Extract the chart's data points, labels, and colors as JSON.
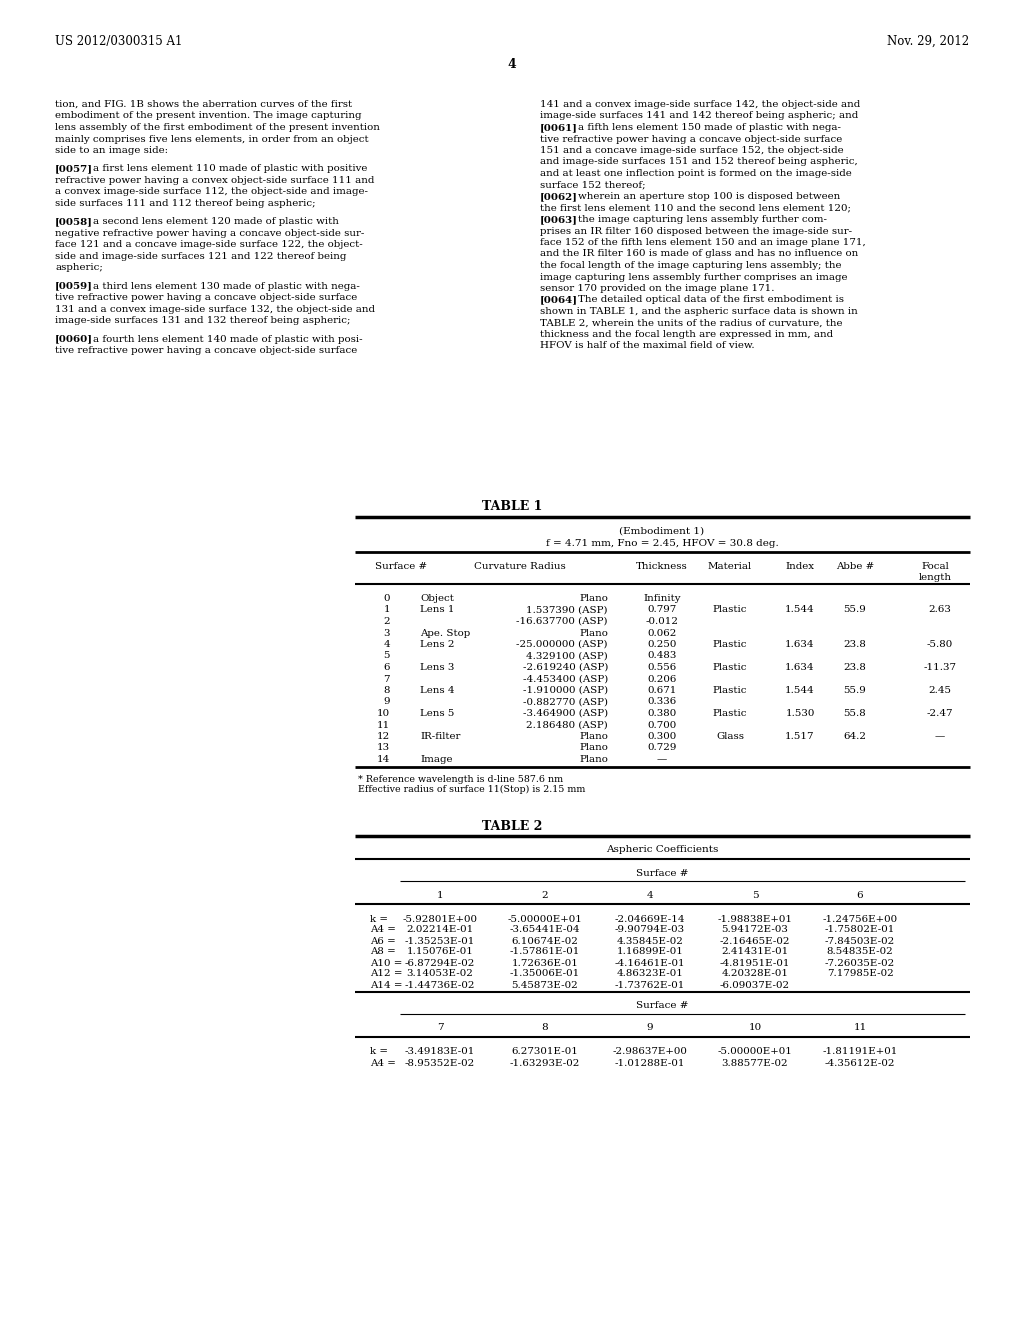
{
  "header_left": "US 2012/0300315 A1",
  "header_right": "Nov. 29, 2012",
  "page_number": "4",
  "background_color": "#ffffff",
  "text_color": "#000000",
  "left_column_text": [
    "tion, and FIG. 1B shows the aberration curves of the first",
    "embodiment of the present invention. The image capturing",
    "lens assembly of the first embodiment of the present invention",
    "mainly comprises five lens elements, in order from an object",
    "side to an image side:",
    "",
    "[0057]    a first lens element 110 made of plastic with positive",
    "refractive power having a convex object-side surface 111 and",
    "a convex image-side surface 112, the object-side and image-",
    "side surfaces 111 and 112 thereof being aspheric;",
    "",
    "[0058]    a second lens element 120 made of plastic with",
    "negative refractive power having a concave object-side sur-",
    "face 121 and a concave image-side surface 122, the object-",
    "side and image-side surfaces 121 and 122 thereof being",
    "aspheric;",
    "",
    "[0059]    a third lens element 130 made of plastic with nega-",
    "tive refractive power having a concave object-side surface",
    "131 and a convex image-side surface 132, the object-side and",
    "image-side surfaces 131 and 132 thereof being aspheric;",
    "",
    "[0060]    a fourth lens element 140 made of plastic with posi-",
    "tive refractive power having a concave object-side surface"
  ],
  "right_column_text": [
    "141 and a convex image-side surface 142, the object-side and",
    "image-side surfaces 141 and 142 thereof being aspheric; and",
    "[0061]    a fifth lens element 150 made of plastic with nega-",
    "tive refractive power having a concave object-side surface",
    "151 and a concave image-side surface 152, the object-side",
    "and image-side surfaces 151 and 152 thereof being aspheric,",
    "and at least one inflection point is formed on the image-side",
    "surface 152 thereof;",
    "[0062]    wherein an aperture stop 100 is disposed between",
    "the first lens element 110 and the second lens element 120;",
    "[0063]    the image capturing lens assembly further com-",
    "prises an IR filter 160 disposed between the image-side sur-",
    "face 152 of the fifth lens element 150 and an image plane 171,",
    "and the IR filter 160 is made of glass and has no influence on",
    "the focal length of the image capturing lens assembly; the",
    "image capturing lens assembly further comprises an image",
    "sensor 170 provided on the image plane 171.",
    "[0064]    The detailed optical data of the first embodiment is",
    "shown in TABLE 1, and the aspheric surface data is shown in",
    "TABLE 2, wherein the units of the radius of curvature, the",
    "thickness and the focal length are expressed in mm, and",
    "HFOV is half of the maximal field of view."
  ],
  "table1_title": "TABLE 1",
  "table1_subtitle1": "(Embodiment 1)",
  "table1_subtitle2": "f = 4.71 mm, Fno = 2.45, HFOV = 30.8 deg.",
  "table1_rows": [
    [
      "0",
      "Object",
      "Plano",
      "Infinity",
      "",
      "",
      "",
      ""
    ],
    [
      "1",
      "Lens 1",
      "1.537390 (ASP)",
      "0.797",
      "Plastic",
      "1.544",
      "55.9",
      "2.63"
    ],
    [
      "2",
      "",
      "-16.637700 (ASP)",
      "-0.012",
      "",
      "",
      "",
      ""
    ],
    [
      "3",
      "Ape. Stop",
      "Plano",
      "0.062",
      "",
      "",
      "",
      ""
    ],
    [
      "4",
      "Lens 2",
      "-25.000000 (ASP)",
      "0.250",
      "Plastic",
      "1.634",
      "23.8",
      "-5.80"
    ],
    [
      "5",
      "",
      "4.329100 (ASP)",
      "0.483",
      "",
      "",
      "",
      ""
    ],
    [
      "6",
      "Lens 3",
      "-2.619240 (ASP)",
      "0.556",
      "Plastic",
      "1.634",
      "23.8",
      "-11.37"
    ],
    [
      "7",
      "",
      "-4.453400 (ASP)",
      "0.206",
      "",
      "",
      "",
      ""
    ],
    [
      "8",
      "Lens 4",
      "-1.910000 (ASP)",
      "0.671",
      "Plastic",
      "1.544",
      "55.9",
      "2.45"
    ],
    [
      "9",
      "",
      "-0.882770 (ASP)",
      "0.336",
      "",
      "",
      "",
      ""
    ],
    [
      "10",
      "Lens 5",
      "-3.464900 (ASP)",
      "0.380",
      "Plastic",
      "1.530",
      "55.8",
      "-2.47"
    ],
    [
      "11",
      "",
      "2.186480 (ASP)",
      "0.700",
      "",
      "",
      "",
      ""
    ],
    [
      "12",
      "IR-filter",
      "Plano",
      "0.300",
      "Glass",
      "1.517",
      "64.2",
      "—"
    ],
    [
      "13",
      "",
      "Plano",
      "0.729",
      "",
      "",
      "",
      ""
    ],
    [
      "14",
      "Image",
      "Plano",
      "—",
      "",
      "",
      "",
      ""
    ]
  ],
  "table1_footnote1": "* Reference wavelength is d-line 587.6 nm",
  "table1_footnote2": "Effective radius of surface 11(Stop) is 2.15 mm",
  "table2_title": "TABLE 2",
  "table2_subtitle": "Aspheric Coefficients",
  "table2_surface_header": "Surface #",
  "table2_cols1": [
    "1",
    "2",
    "4",
    "5",
    "6"
  ],
  "table2_rows1": [
    [
      "k =",
      "-5.92801E+00",
      "-5.00000E+01",
      "-2.04669E-14",
      "-1.98838E+01",
      "-1.24756E+00"
    ],
    [
      "A4 =",
      "2.02214E-01",
      "-3.65441E-04",
      "-9.90794E-03",
      "5.94172E-03",
      "-1.75802E-01"
    ],
    [
      "A6 =",
      "-1.35253E-01",
      "6.10674E-02",
      "4.35845E-02",
      "-2.16465E-02",
      "-7.84503E-02"
    ],
    [
      "A8 =",
      "1.15076E-01",
      "-1.57861E-01",
      "1.16899E-01",
      "2.41431E-01",
      "8.54835E-02"
    ],
    [
      "A10 =",
      "-6.87294E-02",
      "1.72636E-01",
      "-4.16461E-01",
      "-4.81951E-01",
      "-7.26035E-02"
    ],
    [
      "A12 =",
      "3.14053E-02",
      "-1.35006E-01",
      "4.86323E-01",
      "4.20328E-01",
      "7.17985E-02"
    ],
    [
      "A14 =",
      "-1.44736E-02",
      "5.45873E-02",
      "-1.73762E-01",
      "-6.09037E-02",
      ""
    ]
  ],
  "table2_cols2": [
    "7",
    "8",
    "9",
    "10",
    "11"
  ],
  "table2_rows2": [
    [
      "k =",
      "-3.49183E-01",
      "6.27301E-01",
      "-2.98637E+00",
      "-5.00000E+01",
      "-1.81191E+01"
    ],
    [
      "A4 =",
      "-8.95352E-02",
      "-1.63293E-02",
      "-1.01288E-01",
      "3.88577E-02",
      "-4.35612E-02"
    ]
  ]
}
